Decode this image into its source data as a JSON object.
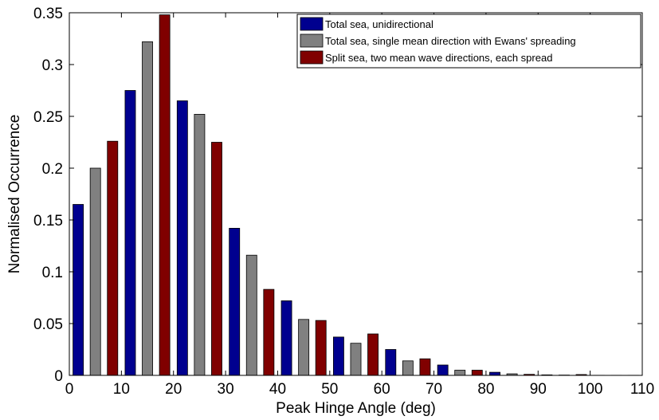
{
  "chart_data": {
    "type": "bar",
    "title": "",
    "xlabel": "Peak Hinge Angle (deg)",
    "ylabel": "Normalised Occurrence",
    "xlim": [
      0,
      110
    ],
    "ylim": [
      0,
      0.35
    ],
    "xticks": [
      0,
      10,
      20,
      30,
      40,
      50,
      60,
      70,
      80,
      90,
      100,
      110
    ],
    "yticks": [
      0,
      0.05,
      0.1,
      0.15,
      0.2,
      0.25,
      0.3,
      0.35
    ],
    "xtick_labels": [
      "0",
      "10",
      "20",
      "30",
      "40",
      "50",
      "60",
      "70",
      "80",
      "90",
      "100",
      "110"
    ],
    "ytick_labels": [
      "0",
      "0.05",
      "0.1",
      "0.15",
      "0.2",
      "0.25",
      "0.3",
      "0.35"
    ],
    "bin_centers": [
      5,
      15,
      25,
      35,
      45,
      55,
      65,
      75,
      85,
      95,
      105
    ],
    "bar_width": 2,
    "grid": false,
    "legend_position": "top-right",
    "series": [
      {
        "name": "Total sea, unidirectional",
        "color": "#00008f",
        "values": [
          0.165,
          0.275,
          0.265,
          0.142,
          0.072,
          0.037,
          0.025,
          0.01,
          0.003,
          0.0005,
          0.0001
        ]
      },
      {
        "name": "Total sea, single mean direction with Ewans' spreading",
        "color": "#808080",
        "values": [
          0.2,
          0.322,
          0.252,
          0.116,
          0.054,
          0.031,
          0.014,
          0.005,
          0.0015,
          0.0003,
          0.0001
        ]
      },
      {
        "name": "Split sea, two mean wave directions, each spread",
        "color": "#800000",
        "values": [
          0.226,
          0.348,
          0.225,
          0.083,
          0.053,
          0.04,
          0.016,
          0.005,
          0.001,
          0.0008,
          0.0001
        ]
      }
    ]
  }
}
